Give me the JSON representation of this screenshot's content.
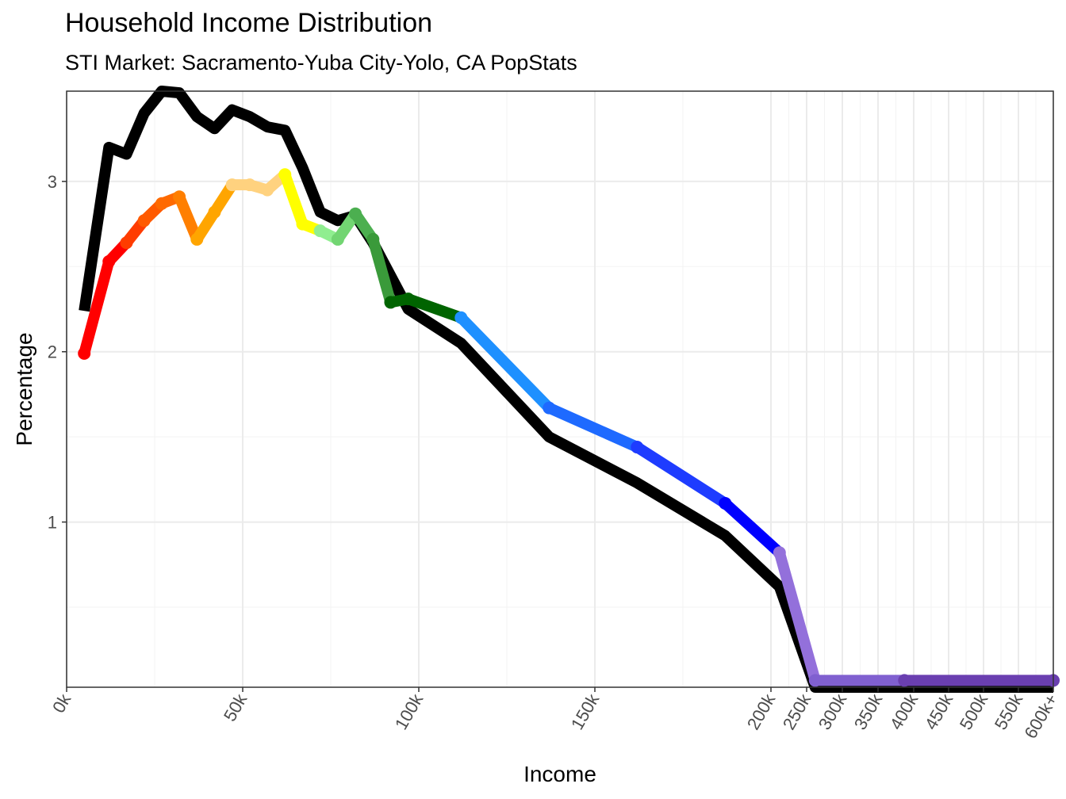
{
  "chart_data": {
    "type": "line",
    "title": "Household Income Distribution",
    "subtitle": "STI Market: Sacramento-Yuba City-Yolo, CA PopStats",
    "xlabel": "Income",
    "ylabel": "Percentage",
    "ylim": [
      0.03,
      3.53
    ],
    "y_ticks": [
      1,
      2,
      3
    ],
    "x_ticks": [
      "0k",
      "50k",
      "100k",
      "150k",
      "200k",
      "250k",
      "300k",
      "350k",
      "400k",
      "450k",
      "500k",
      "550k",
      "600k+"
    ],
    "grid": true,
    "series": [
      {
        "color": "#000000",
        "points": [
          [
            "5k",
            2.24
          ],
          [
            "12k",
            3.2
          ],
          [
            "17k",
            3.16
          ],
          [
            "22k",
            3.4
          ],
          [
            "27k",
            3.53
          ],
          [
            "32k",
            3.52
          ],
          [
            "37k",
            3.38
          ],
          [
            "42k",
            3.31
          ],
          [
            "47k",
            3.42
          ],
          [
            "52k",
            3.38
          ],
          [
            "57k",
            3.32
          ],
          [
            "62k",
            3.3
          ],
          [
            "67k",
            3.08
          ],
          [
            "72k",
            2.82
          ],
          [
            "77k",
            2.77
          ],
          [
            "82k",
            2.8
          ],
          [
            "87k",
            2.64
          ],
          [
            "97k",
            2.25
          ],
          [
            "112k",
            2.05
          ],
          [
            "137k",
            1.5
          ],
          [
            "162k",
            1.23
          ],
          [
            "187k",
            0.92
          ],
          [
            "212k",
            0.62
          ],
          [
            "262k",
            0.03
          ],
          [
            "387k",
            0.03
          ],
          [
            "600k+",
            0.03
          ]
        ]
      },
      {
        "segment_colors": [
          "#ff0000",
          "#ff0000",
          "#ff3c00",
          "#ff5a00",
          "#ff6a00",
          "#ff7f00",
          "#ffa500",
          "#ffa500",
          "#ffd27f",
          "#ffd27f",
          "#ffd27f",
          "#ffff00",
          "#ffff00",
          "#90ee90",
          "#72d572",
          "#4caf50",
          "#3a9a3a",
          "#006400",
          "#006400",
          "#1e90ff",
          "#1e6aff",
          "#1e3cff",
          "#0000ff",
          "#9370db",
          "#8060d0",
          "#6a3fb0"
        ],
        "points": [
          [
            "5k",
            1.99
          ],
          [
            "12k",
            2.53
          ],
          [
            "17k",
            2.64
          ],
          [
            "22k",
            2.77
          ],
          [
            "27k",
            2.87
          ],
          [
            "32k",
            2.91
          ],
          [
            "37k",
            2.66
          ],
          [
            "42k",
            2.82
          ],
          [
            "47k",
            2.98
          ],
          [
            "52k",
            2.98
          ],
          [
            "57k",
            2.95
          ],
          [
            "62k",
            3.04
          ],
          [
            "67k",
            2.75
          ],
          [
            "72k",
            2.71
          ],
          [
            "77k",
            2.66
          ],
          [
            "82k",
            2.81
          ],
          [
            "87k",
            2.66
          ],
          [
            "92k",
            2.29
          ],
          [
            "97k",
            2.31
          ],
          [
            "112k",
            2.2
          ],
          [
            "137k",
            1.67
          ],
          [
            "162k",
            1.44
          ],
          [
            "187k",
            1.11
          ],
          [
            "212k",
            0.82
          ],
          [
            "262k",
            0.07
          ],
          [
            "387k",
            0.07
          ],
          [
            "600k+",
            0.07
          ]
        ]
      }
    ]
  }
}
